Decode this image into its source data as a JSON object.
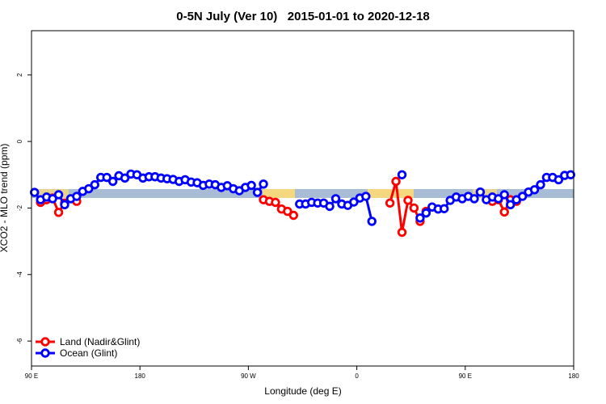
{
  "chart_data": {
    "type": "line",
    "title": "0-5N July (Ver 10)   2015-01-01 to 2020-12-18",
    "x_label": "Longitude (deg E)",
    "y_label": "XCO2 - MLO trend (ppm)",
    "xlim": [
      90,
      540
    ],
    "ylim": [
      -6.75,
      3.33
    ],
    "xticks": [
      {
        "value": 90,
        "label": "90 E"
      },
      180,
      {
        "value": 270,
        "label": "90 W"
      },
      {
        "value": 360,
        "label": "0"
      },
      {
        "value": 450,
        "label": "90 E"
      },
      {
        "value": 540,
        "label": "180"
      }
    ],
    "yticks": [
      -6,
      -4,
      -2,
      0,
      2
    ],
    "legend": "bottom-left",
    "x": [
      92.5,
      97.5,
      102.5,
      107.5,
      112.5,
      117.5,
      122.5,
      127.5,
      132.5,
      137.5,
      142.5,
      147.5,
      152.5,
      157.5,
      162.5,
      167.5,
      172.5,
      177.5,
      182.5,
      187.5,
      192.5,
      197.5,
      202.5,
      207.5,
      212.5,
      217.5,
      222.5,
      227.5,
      232.5,
      237.5,
      242.5,
      247.5,
      252.5,
      257.5,
      262.5,
      267.5,
      272.5,
      277.5,
      282.5,
      287.5,
      292.5,
      297.5,
      302.5,
      307.5,
      312.5,
      317.5,
      322.5,
      327.5,
      332.5,
      337.5,
      342.5,
      347.5,
      352.5,
      357.5,
      362.5,
      367.5,
      372.5,
      377.5,
      382.5,
      387.5,
      392.5,
      397.5,
      402.5,
      407.5,
      412.5,
      417.5,
      422.5,
      427.5,
      432.5,
      437.5,
      442.5,
      447.5,
      452.5,
      457.5,
      462.5,
      467.5,
      472.5,
      477.5,
      482.5,
      487.5,
      492.5,
      497.5,
      502.5,
      507.5,
      512.5,
      517.5,
      522.5,
      527.5,
      532.5,
      537.5
    ],
    "series": [
      {
        "name": "Land (Nadir&Glint)",
        "color": "#ff0000",
        "values": [
          null,
          -1.83,
          -1.75,
          -1.7,
          -2.13,
          -1.85,
          null,
          -1.8,
          null,
          null,
          null,
          null,
          null,
          null,
          null,
          null,
          null,
          null,
          null,
          null,
          null,
          null,
          null,
          null,
          null,
          null,
          null,
          null,
          null,
          null,
          null,
          null,
          null,
          null,
          null,
          null,
          null,
          null,
          -1.75,
          -1.8,
          -1.83,
          -2.03,
          -2.1,
          -2.22,
          null,
          null,
          null,
          null,
          null,
          null,
          null,
          null,
          null,
          null,
          null,
          null,
          null,
          null,
          null,
          -1.85,
          -1.2,
          -2.73,
          -1.77,
          -2.0,
          -2.4,
          -2.1,
          null,
          null,
          null,
          null,
          null,
          null,
          null,
          null,
          null,
          null,
          -1.8,
          -1.75,
          -2.12,
          -1.75,
          -1.8,
          null,
          null,
          null,
          null,
          null,
          null,
          null,
          null,
          null
        ]
      },
      {
        "name": "Ocean (Glint)",
        "color": "#0000ff",
        "values": [
          -1.53,
          -1.75,
          -1.67,
          -1.72,
          -1.6,
          -1.9,
          -1.72,
          -1.65,
          -1.5,
          -1.42,
          -1.3,
          -1.08,
          -1.08,
          -1.2,
          -1.03,
          -1.1,
          -0.98,
          -1.0,
          -1.1,
          -1.06,
          -1.06,
          -1.1,
          -1.12,
          -1.14,
          -1.2,
          -1.15,
          -1.22,
          -1.24,
          -1.32,
          -1.28,
          -1.3,
          -1.38,
          -1.33,
          -1.42,
          -1.48,
          -1.38,
          -1.32,
          -1.53,
          -1.28,
          null,
          null,
          null,
          null,
          null,
          -1.88,
          -1.88,
          -1.83,
          -1.85,
          -1.85,
          -1.95,
          -1.72,
          -1.88,
          -1.92,
          -1.82,
          -1.7,
          -1.65,
          -2.4,
          null,
          null,
          null,
          null,
          -1.0,
          null,
          null,
          -2.3,
          -2.15,
          -1.97,
          -2.03,
          -2.02,
          -1.77,
          -1.67,
          -1.72,
          -1.65,
          -1.72,
          -1.52,
          -1.75,
          -1.67,
          -1.72,
          -1.6,
          -1.9,
          -1.75,
          -1.65,
          -1.52,
          -1.45,
          -1.3,
          -1.08,
          -1.08,
          -1.15,
          -1.02,
          -1.0
        ]
      }
    ]
  }
}
